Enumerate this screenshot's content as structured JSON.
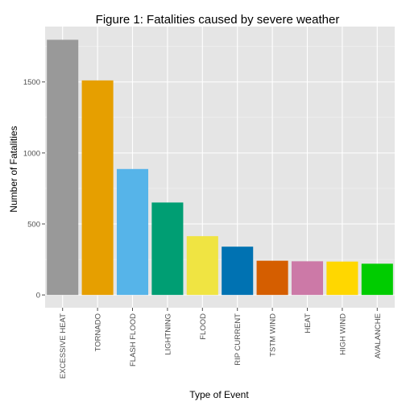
{
  "chart_data": {
    "type": "bar",
    "title": "Figure 1: Fatalities caused by severe weather",
    "xlabel": "Type of Event",
    "ylabel": "Number of Fatalities",
    "categories": [
      "EXCESSIVE HEAT",
      "TORNADO",
      "FLASH FLOOD",
      "LIGHTNING",
      "FLOOD",
      "RIP CURRENT",
      "TSTM WIND",
      "HEAT",
      "HIGH WIND",
      "AVALANCHE"
    ],
    "values": [
      1797,
      1511,
      887,
      651,
      414,
      340,
      241,
      237,
      235,
      220
    ],
    "colors": [
      "#999999",
      "#E69F00",
      "#56B4E9",
      "#009E73",
      "#F0E442",
      "#0072B2",
      "#D55E00",
      "#CC79A7",
      "#FFD700",
      "#00CC00"
    ],
    "yticks": [
      0,
      500,
      1000,
      1500
    ],
    "ylim": [
      -90,
      1890
    ],
    "grid": true,
    "panel_background": "#E5E5E5"
  }
}
